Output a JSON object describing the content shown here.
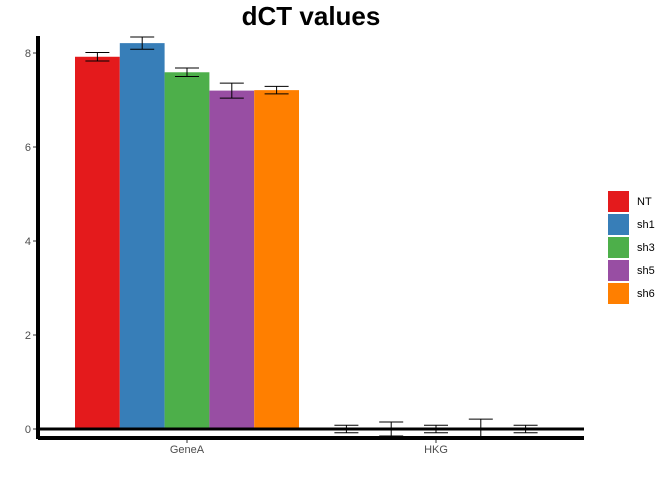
{
  "chart_data": {
    "type": "bar",
    "title": "dCT values",
    "xlabel": "",
    "ylabel": "",
    "categories": [
      "GeneA",
      "HKG"
    ],
    "ylim": [
      0,
      8.4
    ],
    "yticks": [
      0,
      2,
      4,
      6,
      8
    ],
    "grid": false,
    "legend_position": "right",
    "series": [
      {
        "name": "NT",
        "color": "#E41A1C",
        "values": [
          7.92,
          0.0
        ],
        "error": [
          0.09,
          0.08
        ]
      },
      {
        "name": "sh1",
        "color": "#377EB8",
        "values": [
          8.21,
          0.0
        ],
        "error": [
          0.13,
          0.15
        ]
      },
      {
        "name": "sh3",
        "color": "#4DAF4A",
        "values": [
          7.59,
          0.0
        ],
        "error": [
          0.09,
          0.08
        ]
      },
      {
        "name": "sh5",
        "color": "#984EA3",
        "values": [
          7.2,
          0.0
        ],
        "error": [
          0.16,
          0.21
        ]
      },
      {
        "name": "sh6",
        "color": "#FF7F00",
        "values": [
          7.21,
          0.0
        ],
        "error": [
          0.08,
          0.08
        ]
      }
    ]
  }
}
